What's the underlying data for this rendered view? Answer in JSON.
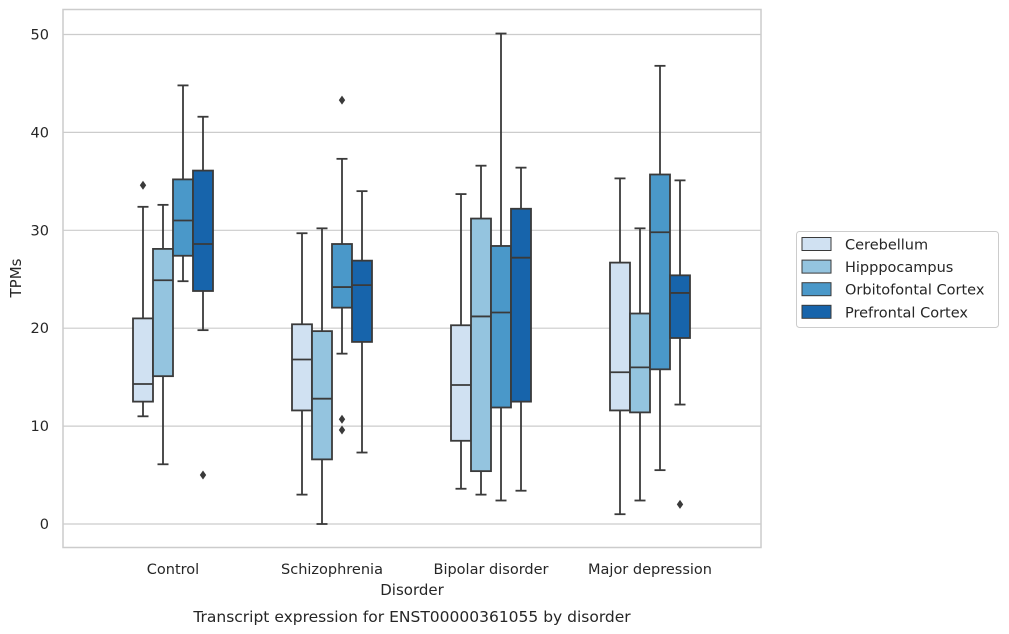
{
  "chart_data": {
    "type": "boxplot",
    "title": "",
    "caption": "Transcript expression for ENST00000361055 by disorder",
    "xlabel": "Disorder",
    "ylabel": "TPMs",
    "ylim": [
      -2.4,
      52.7
    ],
    "yticks": [
      "0",
      "10",
      "20",
      "30",
      "40",
      "50"
    ],
    "grid": true,
    "legend_position": "right",
    "categories": [
      "Control",
      "Schizophrenia",
      "Bipolar disorder",
      "Major depression"
    ],
    "series": [
      {
        "name": "Cerebellum",
        "color": "#d0e1f2",
        "boxes": [
          {
            "whislo": 11.0,
            "q1": 12.5,
            "med": 14.3,
            "q3": 21.0,
            "whishi": 32.4,
            "fliers": [
              34.6
            ]
          },
          {
            "whislo": 3.0,
            "q1": 11.6,
            "med": 16.8,
            "q3": 20.4,
            "whishi": 29.7,
            "fliers": []
          },
          {
            "whislo": 3.6,
            "q1": 8.5,
            "med": 14.2,
            "q3": 20.3,
            "whishi": 33.7,
            "fliers": []
          },
          {
            "whislo": 1.0,
            "q1": 11.6,
            "med": 15.5,
            "q3": 26.7,
            "whishi": 35.3,
            "fliers": []
          }
        ]
      },
      {
        "name": "Hipppocampus",
        "color": "#94c4df",
        "boxes": [
          {
            "whislo": 6.1,
            "q1": 15.1,
            "med": 24.9,
            "q3": 28.1,
            "whishi": 32.6,
            "fliers": []
          },
          {
            "whislo": 0.0,
            "q1": 6.6,
            "med": 12.8,
            "q3": 19.7,
            "whishi": 30.2,
            "fliers": []
          },
          {
            "whislo": 3.0,
            "q1": 5.4,
            "med": 21.2,
            "q3": 31.2,
            "whishi": 36.6,
            "fliers": []
          },
          {
            "whislo": 2.4,
            "q1": 11.4,
            "med": 16.0,
            "q3": 21.5,
            "whishi": 30.2,
            "fliers": []
          }
        ]
      },
      {
        "name": "Orbitofontal Cortex",
        "color": "#4a98c9",
        "boxes": [
          {
            "whislo": 24.8,
            "q1": 27.4,
            "med": 31.0,
            "q3": 35.2,
            "whishi": 44.8,
            "fliers": []
          },
          {
            "whislo": 17.4,
            "q1": 22.1,
            "med": 24.2,
            "q3": 28.6,
            "whishi": 37.3,
            "fliers": [
              43.3,
              10.7,
              9.6
            ]
          },
          {
            "whislo": 2.4,
            "q1": 11.9,
            "med": 21.6,
            "q3": 28.4,
            "whishi": 50.1,
            "fliers": []
          },
          {
            "whislo": 5.5,
            "q1": 15.8,
            "med": 29.8,
            "q3": 35.7,
            "whishi": 46.8,
            "fliers": []
          }
        ]
      },
      {
        "name": "Prefrontal Cortex",
        "color": "#1764ab",
        "boxes": [
          {
            "whislo": 19.8,
            "q1": 23.8,
            "med": 28.6,
            "q3": 36.1,
            "whishi": 41.6,
            "fliers": [
              5.0
            ]
          },
          {
            "whislo": 7.3,
            "q1": 18.6,
            "med": 24.4,
            "q3": 26.9,
            "whishi": 34.0,
            "fliers": []
          },
          {
            "whislo": 3.4,
            "q1": 12.5,
            "med": 27.2,
            "q3": 32.2,
            "whishi": 36.4,
            "fliers": []
          },
          {
            "whislo": 12.2,
            "q1": 19.0,
            "med": 23.6,
            "q3": 25.4,
            "whishi": 35.1,
            "fliers": [
              2.0
            ]
          }
        ]
      }
    ]
  }
}
